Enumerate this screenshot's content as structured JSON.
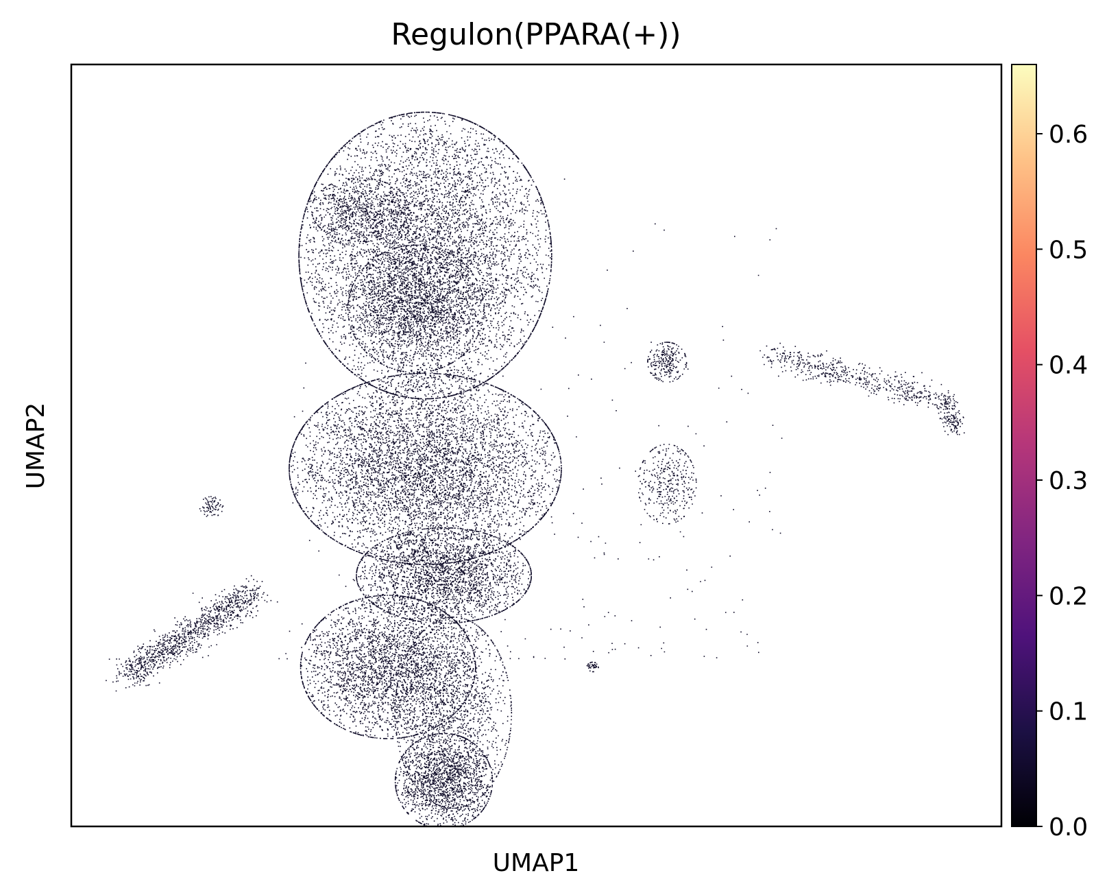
{
  "chart_data": {
    "type": "scatter",
    "title": "Regulon(PPARA(+))",
    "xlabel": "UMAP1",
    "ylabel": "UMAP2",
    "x_ticks": [],
    "y_ticks": [],
    "grid": false,
    "legend": "none",
    "point_color": "#0c0926",
    "series": [
      {
        "clusters": [
          {
            "cx": 0.38,
            "cy": 0.75,
            "rx": 0.13,
            "ry": 0.18,
            "n": 7000
          },
          {
            "cx": 0.37,
            "cy": 0.68,
            "rx": 0.07,
            "ry": 0.08,
            "n": 1500
          },
          {
            "cx": 0.31,
            "cy": 0.81,
            "rx": 0.05,
            "ry": 0.04,
            "n": 600
          },
          {
            "cx": 0.38,
            "cy": 0.47,
            "rx": 0.14,
            "ry": 0.12,
            "n": 6000
          },
          {
            "cx": 0.4,
            "cy": 0.33,
            "rx": 0.09,
            "ry": 0.06,
            "n": 2500
          },
          {
            "cx": 0.34,
            "cy": 0.21,
            "rx": 0.09,
            "ry": 0.09,
            "n": 3200
          },
          {
            "cx": 0.41,
            "cy": 0.15,
            "rx": 0.06,
            "ry": 0.12,
            "n": 1500
          },
          {
            "cx": 0.4,
            "cy": 0.06,
            "rx": 0.05,
            "ry": 0.06,
            "n": 1600
          },
          {
            "cx": 0.64,
            "cy": 0.61,
            "rx": 0.02,
            "ry": 0.025,
            "n": 250
          },
          {
            "cx": 0.64,
            "cy": 0.45,
            "rx": 0.03,
            "ry": 0.05,
            "n": 350
          },
          {
            "cx": 0.56,
            "cy": 0.21,
            "rx": 0.006,
            "ry": 0.006,
            "n": 40
          },
          {
            "cx": 0.15,
            "cy": 0.42,
            "rx": 0.012,
            "ry": 0.013,
            "n": 80
          }
        ],
        "trails": [
          {
            "from": [
              0.06,
              0.2
            ],
            "to": [
              0.2,
              0.31
            ],
            "width": 0.02,
            "n": 1100
          },
          {
            "from": [
              0.75,
              0.62
            ],
            "to": [
              0.94,
              0.56
            ],
            "width": 0.018,
            "n": 550
          },
          {
            "from": [
              0.94,
              0.56
            ],
            "to": [
              0.95,
              0.52
            ],
            "width": 0.01,
            "n": 150
          }
        ],
        "value_range": [
          0.0,
          0.02
        ]
      }
    ],
    "colorbar": {
      "cmap": "magma",
      "min": 0.0,
      "max": 0.66,
      "ticks": [
        "0.0",
        "0.1",
        "0.2",
        "0.3",
        "0.4",
        "0.5",
        "0.6"
      ],
      "tick_values": [
        0.0,
        0.1,
        0.2,
        0.3,
        0.4,
        0.5,
        0.6
      ],
      "stops": [
        "#000004",
        "#1c1044",
        "#4f127b",
        "#812581",
        "#b5367a",
        "#e55064",
        "#fb8761",
        "#fec287",
        "#fcfdbf"
      ]
    }
  }
}
